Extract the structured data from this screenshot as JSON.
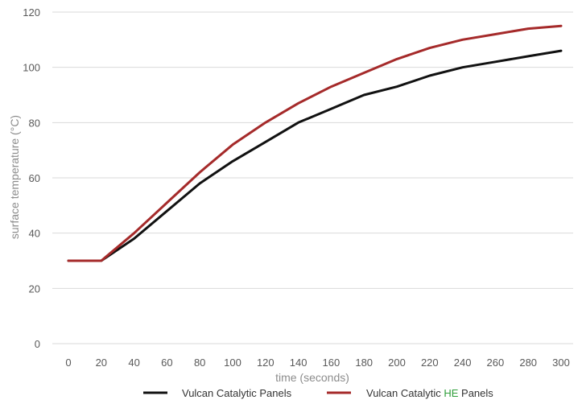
{
  "chart_data": {
    "type": "line",
    "title": "",
    "xlabel": "time (seconds)",
    "ylabel": "surface temperature (°C)",
    "ylim": [
      0,
      120
    ],
    "xlim": [
      0,
      300
    ],
    "yticks": [
      0,
      20,
      40,
      60,
      80,
      100,
      120
    ],
    "xticks": [
      0,
      20,
      40,
      60,
      80,
      100,
      120,
      140,
      160,
      180,
      200,
      220,
      240,
      260,
      280,
      300
    ],
    "grid": "horizontal",
    "legend_position": "bottom",
    "x": [
      0,
      20,
      40,
      60,
      80,
      100,
      120,
      140,
      160,
      180,
      200,
      220,
      240,
      260,
      280,
      300
    ],
    "series": [
      {
        "name": "Vulcan Catalytic Panels",
        "name_parts": [
          {
            "text": "Vulcan Catalytic Panels"
          }
        ],
        "color": "#111111",
        "values": [
          30,
          30,
          38,
          48,
          58,
          66,
          73,
          80,
          85,
          90,
          93,
          97,
          100,
          102,
          104,
          106
        ]
      },
      {
        "name": "Vulcan Catalytic HE Panels",
        "name_parts": [
          {
            "text": "Vulcan Catalytic "
          },
          {
            "text": "HE",
            "color": "#2e9e3a"
          },
          {
            "text": " Panels"
          }
        ],
        "color": "#a52a2a",
        "values": [
          30,
          30,
          40,
          51,
          62,
          72,
          80,
          87,
          93,
          98,
          103,
          107,
          110,
          112,
          114,
          115
        ]
      }
    ]
  }
}
